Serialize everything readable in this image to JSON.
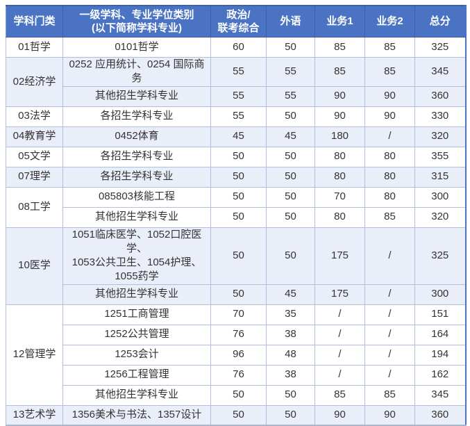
{
  "table": {
    "title_semantic": "graduate-admission-score-lines",
    "accent_color": "#4a73c4",
    "shade_row_color": "#e9eef8",
    "headers": {
      "category": "学科门类",
      "major": "一级学科、专业学位类别\n(以下简称学科专业)",
      "politics": "政治/\n联考综合",
      "foreign_language": "外语",
      "business1": "业务1",
      "business2": "业务2",
      "total": "总分"
    },
    "groups": [
      {
        "category": "01哲学",
        "rows": [
          {
            "major": "0101哲学",
            "politics": "60",
            "foreign": "50",
            "b1": "85",
            "b2": "85",
            "total": "325"
          }
        ]
      },
      {
        "category": "02经济学",
        "rows": [
          {
            "major": "0252 应用统计、0254 国际商务",
            "politics": "55",
            "foreign": "55",
            "b1": "85",
            "b2": "85",
            "total": "345"
          },
          {
            "major": "其他招生学科专业",
            "politics": "55",
            "foreign": "55",
            "b1": "90",
            "b2": "90",
            "total": "360"
          }
        ]
      },
      {
        "category": "03法学",
        "rows": [
          {
            "major": "各招生学科专业",
            "politics": "55",
            "foreign": "50",
            "b1": "90",
            "b2": "90",
            "total": "330"
          }
        ]
      },
      {
        "category": "04教育学",
        "rows": [
          {
            "major": "0452体育",
            "politics": "45",
            "foreign": "45",
            "b1": "180",
            "b2": "/",
            "total": "320"
          }
        ]
      },
      {
        "category": "05文学",
        "rows": [
          {
            "major": "各招生学科专业",
            "politics": "50",
            "foreign": "50",
            "b1": "80",
            "b2": "80",
            "total": "355"
          }
        ]
      },
      {
        "category": "07理学",
        "rows": [
          {
            "major": "各招生学科专业",
            "politics": "50",
            "foreign": "50",
            "b1": "80",
            "b2": "80",
            "total": "315"
          }
        ]
      },
      {
        "category": "08工学",
        "rows": [
          {
            "major": "085803核能工程",
            "politics": "50",
            "foreign": "50",
            "b1": "70",
            "b2": "80",
            "total": "300"
          },
          {
            "major": "其他招生学科专业",
            "politics": "50",
            "foreign": "50",
            "b1": "80",
            "b2": "85",
            "total": "320"
          }
        ]
      },
      {
        "category": "10医学",
        "rows": [
          {
            "major": "1051临床医学、1052口腔医学、\n1053公共卫生、1054护理、\n1055药学",
            "politics": "50",
            "foreign": "50",
            "b1": "175",
            "b2": "/",
            "total": "325"
          },
          {
            "major": "其他招生学科专业",
            "politics": "50",
            "foreign": "45",
            "b1": "175",
            "b2": "/",
            "total": "300"
          }
        ]
      },
      {
        "category": "12管理学",
        "rows": [
          {
            "major": "1251工商管理",
            "politics": "70",
            "foreign": "35",
            "b1": "/",
            "b2": "/",
            "total": "151"
          },
          {
            "major": "1252公共管理",
            "politics": "76",
            "foreign": "38",
            "b1": "/",
            "b2": "/",
            "total": "164"
          },
          {
            "major": "1253会计",
            "politics": "96",
            "foreign": "48",
            "b1": "/",
            "b2": "/",
            "total": "194"
          },
          {
            "major": "1256工程管理",
            "politics": "76",
            "foreign": "38",
            "b1": "/",
            "b2": "/",
            "total": "162"
          },
          {
            "major": "其他招生学科专业",
            "politics": "50",
            "foreign": "50",
            "b1": "85",
            "b2": "85",
            "total": "345"
          }
        ]
      },
      {
        "category": "13艺术学",
        "rows": [
          {
            "major": "1356美术与书法、1357设计",
            "politics": "50",
            "foreign": "50",
            "b1": "90",
            "b2": "90",
            "total": "360"
          }
        ]
      }
    ]
  }
}
